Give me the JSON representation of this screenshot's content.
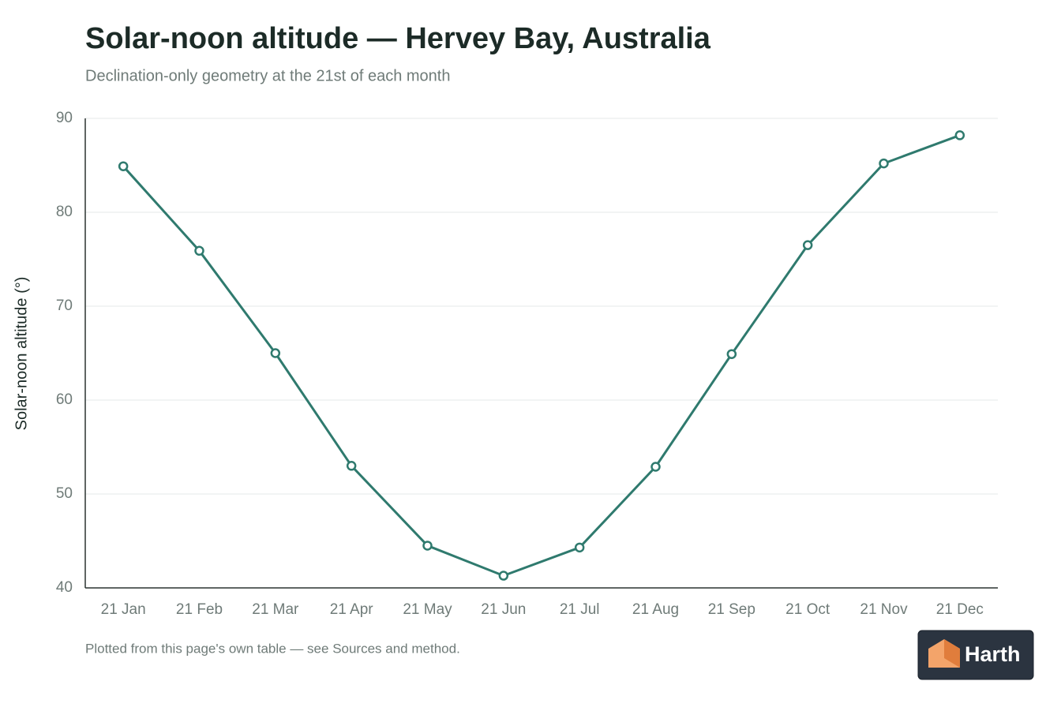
{
  "chart_data": {
    "type": "line",
    "title": "Solar-noon altitude — Hervey Bay, Australia",
    "subtitle": "Declination-only geometry at the 21st of each month",
    "y_label": "Solar-noon altitude (°)",
    "categories": [
      "21 Jan",
      "21 Feb",
      "21 Mar",
      "21 Apr",
      "21 May",
      "21 Jun",
      "21 Jul",
      "21 Aug",
      "21 Sep",
      "21 Oct",
      "21 Nov",
      "21 Dec"
    ],
    "series": [
      {
        "name": "Solar-noon altitude",
        "color": "#2f7a6e",
        "values": [
          84.9,
          75.9,
          65.0,
          53.0,
          44.5,
          41.3,
          44.3,
          52.9,
          64.9,
          76.5,
          85.2,
          88.2
        ]
      }
    ],
    "ylim": [
      40,
      90
    ],
    "yticks": [
      40,
      50,
      60,
      70,
      80,
      90
    ],
    "grid": true
  },
  "footer": {
    "note": "Plotted from this page's own table — see Sources and method.",
    "logo": "Harth"
  }
}
